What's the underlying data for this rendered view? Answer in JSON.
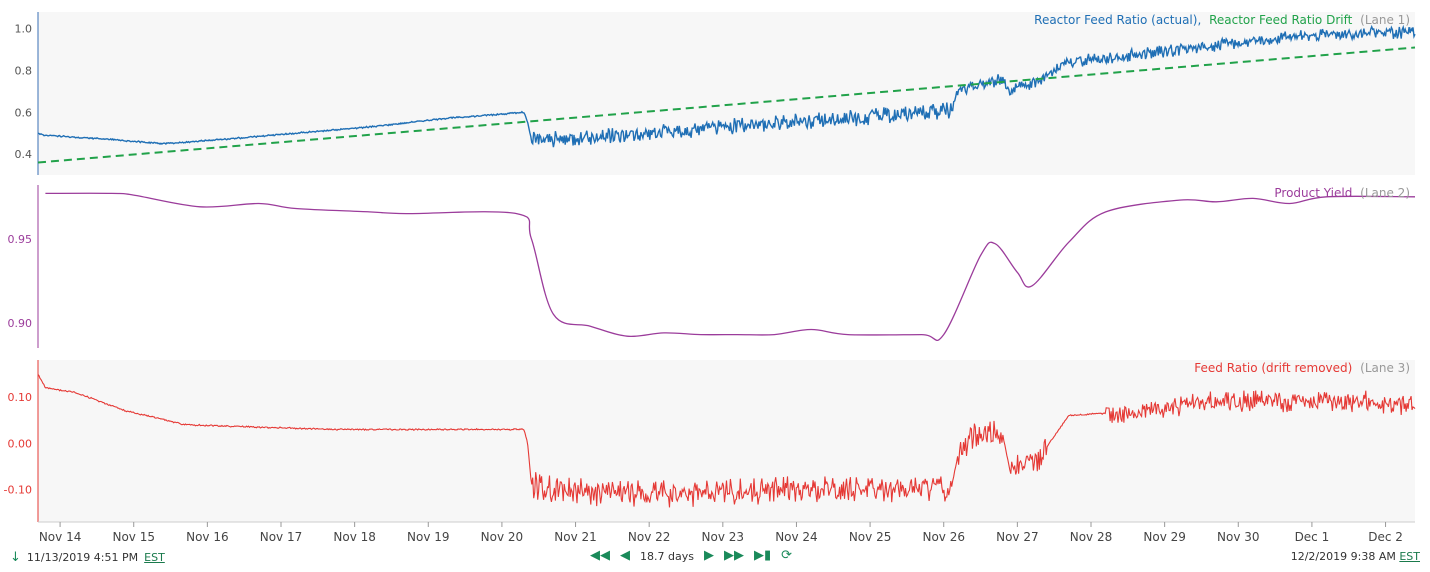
{
  "colors": {
    "lane1_actual": "#1f6fb5",
    "lane1_drift": "#21a24a",
    "lane2": "#9b3c9b",
    "lane3": "#e53935",
    "lane_label_gray": "#999999",
    "nav_green": "#1a8a5a"
  },
  "x_axis": {
    "ticks": [
      "Nov 14",
      "Nov 15",
      "Nov 16",
      "Nov 17",
      "Nov 18",
      "Nov 19",
      "Nov 20",
      "Nov 21",
      "Nov 22",
      "Nov 23",
      "Nov 24",
      "Nov 25",
      "Nov 26",
      "Nov 27",
      "Nov 28",
      "Nov 29",
      "Nov 30",
      "Dec 1",
      "Dec 2"
    ],
    "range_days": [
      0,
      18.7
    ],
    "start_offset_days": 0.3
  },
  "lanes": {
    "lane1": {
      "title_actual": "Reactor Feed Ratio (actual),",
      "title_drift": "Reactor Feed Ratio Drift",
      "lane_tag": "(Lane 1)",
      "y_ticks": [
        "1.0",
        "0.8",
        "0.6",
        "0.4"
      ]
    },
    "lane2": {
      "title": "Product Yield",
      "lane_tag": "(Lane 2)",
      "y_ticks": [
        "0.95",
        "0.90"
      ]
    },
    "lane3": {
      "title": "Feed Ratio (drift removed)",
      "lane_tag": "(Lane 3)",
      "y_ticks": [
        "0.10",
        "0.00",
        "-0.10"
      ]
    }
  },
  "chart_data": [
    {
      "type": "line",
      "title": "Reactor Feed Ratio (actual), Reactor Feed Ratio Drift (Lane 1)",
      "ylim": [
        0.3,
        1.08
      ],
      "series": [
        {
          "name": "Reactor Feed Ratio (actual)",
          "x": [
            0.0,
            0.1,
            1.0,
            1.7,
            2.5,
            3.5,
            4.5,
            5.5,
            6.6,
            6.65,
            6.7,
            7.0,
            8.0,
            9.0,
            10.0,
            11.0,
            12.0,
            12.4,
            12.5,
            13.0,
            13.1,
            13.2,
            13.6,
            14.0,
            15.0,
            16.0,
            17.0,
            18.0,
            18.7
          ],
          "values": [
            0.5,
            0.49,
            0.47,
            0.45,
            0.47,
            0.5,
            0.53,
            0.57,
            0.6,
            0.55,
            0.47,
            0.47,
            0.49,
            0.52,
            0.55,
            0.57,
            0.6,
            0.61,
            0.7,
            0.75,
            0.76,
            0.7,
            0.75,
            0.84,
            0.88,
            0.92,
            0.96,
            0.98,
            0.98
          ],
          "noise_band": [
            [
              6.7,
              12.4,
              0.04
            ],
            [
              12.4,
              18.7,
              0.03
            ]
          ]
        },
        {
          "name": "Reactor Feed Ratio Drift",
          "x": [
            0.0,
            18.7
          ],
          "values": [
            0.36,
            0.91
          ],
          "style": "dashed"
        }
      ]
    },
    {
      "type": "line",
      "title": "Product Yield (Lane 2)",
      "ylim": [
        0.885,
        0.982
      ],
      "series": [
        {
          "name": "Product Yield",
          "x": [
            0.1,
            1.0,
            1.3,
            2.2,
            3.0,
            3.5,
            4.5,
            5.0,
            6.5,
            6.7,
            7.0,
            7.5,
            8.0,
            8.5,
            9.0,
            9.5,
            10.0,
            10.5,
            11.0,
            12.0,
            12.3,
            12.8,
            13.0,
            13.3,
            13.5,
            14.0,
            14.5,
            15.5,
            16.0,
            16.5,
            17.0,
            17.5,
            18.7
          ],
          "values": [
            0.977,
            0.977,
            0.976,
            0.969,
            0.971,
            0.968,
            0.966,
            0.965,
            0.965,
            0.95,
            0.905,
            0.898,
            0.892,
            0.894,
            0.893,
            0.893,
            0.893,
            0.896,
            0.893,
            0.893,
            0.893,
            0.94,
            0.947,
            0.93,
            0.922,
            0.948,
            0.966,
            0.973,
            0.972,
            0.974,
            0.971,
            0.975,
            0.975
          ]
        }
      ]
    },
    {
      "type": "line",
      "title": "Feed Ratio (drift removed) (Lane 3)",
      "ylim": [
        -0.17,
        0.18
      ],
      "series": [
        {
          "name": "Feed Ratio (drift removed)",
          "x": [
            0.0,
            0.1,
            0.5,
            1.2,
            2.0,
            3.0,
            4.0,
            5.0,
            6.0,
            6.6,
            6.65,
            6.7,
            7.0,
            8.0,
            9.0,
            10.0,
            11.0,
            12.0,
            12.4,
            12.5,
            12.7,
            13.1,
            13.2,
            13.6,
            14.0,
            15.0,
            16.0,
            17.0,
            18.0,
            18.7
          ],
          "values": [
            0.15,
            0.12,
            0.11,
            0.07,
            0.04,
            0.035,
            0.03,
            0.03,
            0.03,
            0.03,
            0.0,
            -0.09,
            -0.1,
            -0.11,
            -0.11,
            -0.1,
            -0.1,
            -0.1,
            -0.1,
            -0.02,
            0.02,
            0.02,
            -0.06,
            -0.03,
            0.06,
            0.07,
            0.09,
            0.09,
            0.09,
            0.08
          ],
          "noise_band": [
            [
              6.7,
              12.4,
              0.03
            ],
            [
              12.5,
              13.1,
              0.03
            ],
            [
              13.2,
              13.7,
              0.03
            ],
            [
              14.5,
              18.7,
              0.025
            ]
          ]
        }
      ]
    }
  ],
  "footer": {
    "start": "11/13/2019 4:51 PM",
    "start_tz": "EST",
    "end": "12/2/2019 9:38 AM",
    "end_tz": "EST",
    "span": "18.7 days"
  }
}
